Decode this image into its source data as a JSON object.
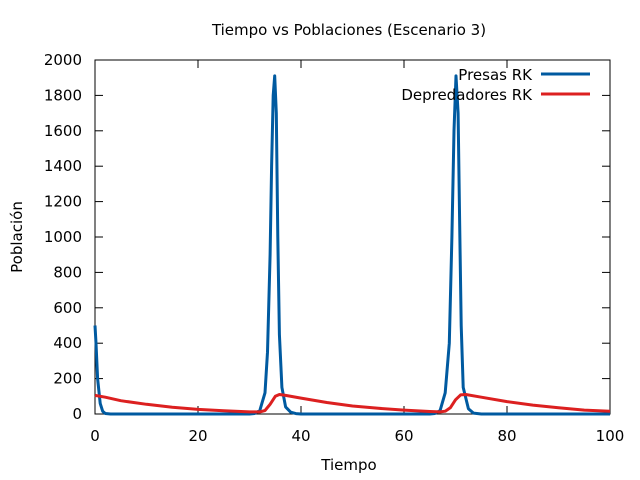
{
  "chart_data": {
    "type": "line",
    "title": "Tiempo vs Poblaciones (Escenario 3)",
    "xlabel": "Tiempo",
    "ylabel": "Población",
    "xlim": [
      0,
      100
    ],
    "ylim": [
      0,
      2000
    ],
    "x_ticks": [
      "0",
      "20",
      "40",
      "60",
      "80",
      "100"
    ],
    "y_ticks": [
      "0",
      "200",
      "400",
      "600",
      "800",
      "1000",
      "1200",
      "1400",
      "1600",
      "1800",
      "2000"
    ],
    "grid": false,
    "legend_position": "top-right",
    "series": [
      {
        "name": "Presas RK",
        "color": "#005aa0",
        "points": [
          [
            0,
            500
          ],
          [
            0.2,
            400
          ],
          [
            0.5,
            200
          ],
          [
            1,
            60
          ],
          [
            1.5,
            15
          ],
          [
            2,
            3
          ],
          [
            3,
            0
          ],
          [
            30,
            0
          ],
          [
            31,
            3
          ],
          [
            32,
            20
          ],
          [
            33,
            120
          ],
          [
            33.5,
            350
          ],
          [
            34,
            900
          ],
          [
            34.3,
            1400
          ],
          [
            34.6,
            1800
          ],
          [
            34.9,
            1910
          ],
          [
            35.2,
            1700
          ],
          [
            35.5,
            1000
          ],
          [
            35.8,
            450
          ],
          [
            36.3,
            150
          ],
          [
            37,
            40
          ],
          [
            38,
            10
          ],
          [
            39,
            2
          ],
          [
            40,
            0
          ],
          [
            65,
            0
          ],
          [
            66,
            3
          ],
          [
            67,
            20
          ],
          [
            68,
            120
          ],
          [
            68.8,
            400
          ],
          [
            69.3,
            1000
          ],
          [
            69.7,
            1600
          ],
          [
            70.1,
            1910
          ],
          [
            70.5,
            1700
          ],
          [
            70.8,
            1100
          ],
          [
            71.1,
            500
          ],
          [
            71.5,
            150
          ],
          [
            72.5,
            30
          ],
          [
            73.5,
            5
          ],
          [
            75,
            0
          ],
          [
            100,
            0
          ]
        ]
      },
      {
        "name": "Depredadores RK",
        "color": "#dc2020",
        "points": [
          [
            0,
            105
          ],
          [
            2,
            95
          ],
          [
            5,
            75
          ],
          [
            10,
            55
          ],
          [
            15,
            38
          ],
          [
            20,
            26
          ],
          [
            25,
            18
          ],
          [
            30,
            12
          ],
          [
            32,
            12
          ],
          [
            33,
            20
          ],
          [
            34,
            55
          ],
          [
            35,
            100
          ],
          [
            35.8,
            110
          ],
          [
            37,
            105
          ],
          [
            40,
            90
          ],
          [
            45,
            65
          ],
          [
            50,
            45
          ],
          [
            55,
            32
          ],
          [
            60,
            22
          ],
          [
            65,
            14
          ],
          [
            67,
            12
          ],
          [
            68,
            16
          ],
          [
            69,
            35
          ],
          [
            70,
            80
          ],
          [
            71,
            108
          ],
          [
            72,
            110
          ],
          [
            75,
            95
          ],
          [
            80,
            70
          ],
          [
            85,
            50
          ],
          [
            90,
            35
          ],
          [
            95,
            22
          ],
          [
            100,
            15
          ]
        ]
      }
    ]
  }
}
